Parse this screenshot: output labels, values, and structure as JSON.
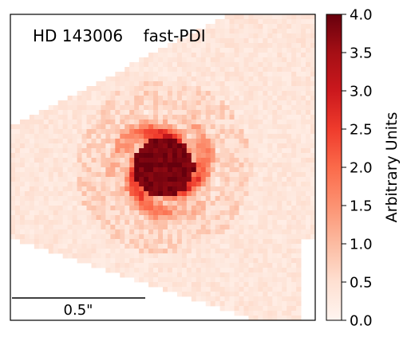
{
  "chart_data": {
    "type": "heatmap",
    "title": "HD 143006    fast-PDI",
    "colorbar": {
      "label": "Arbitrary Units",
      "ticks": [
        "0.0",
        "0.5",
        "1.0",
        "1.5",
        "2.0",
        "2.5",
        "3.0",
        "3.5",
        "4.0"
      ],
      "range": [
        0.0,
        4.0
      ],
      "colormap": [
        "#fff5f0",
        "#fee0d2",
        "#fcbba1",
        "#fc9272",
        "#fb6a4a",
        "#ef3b2c",
        "#cb181d",
        "#a50f15",
        "#67000d"
      ]
    },
    "scale_bar": {
      "label": "0.5\""
    },
    "image": {
      "description_values": {
        "background_level": 0.3,
        "ring_level": 1.6,
        "core_level": 4.0
      },
      "grid": [
        64,
        64
      ]
    },
    "axes_visible": false,
    "grid_lines": false
  }
}
